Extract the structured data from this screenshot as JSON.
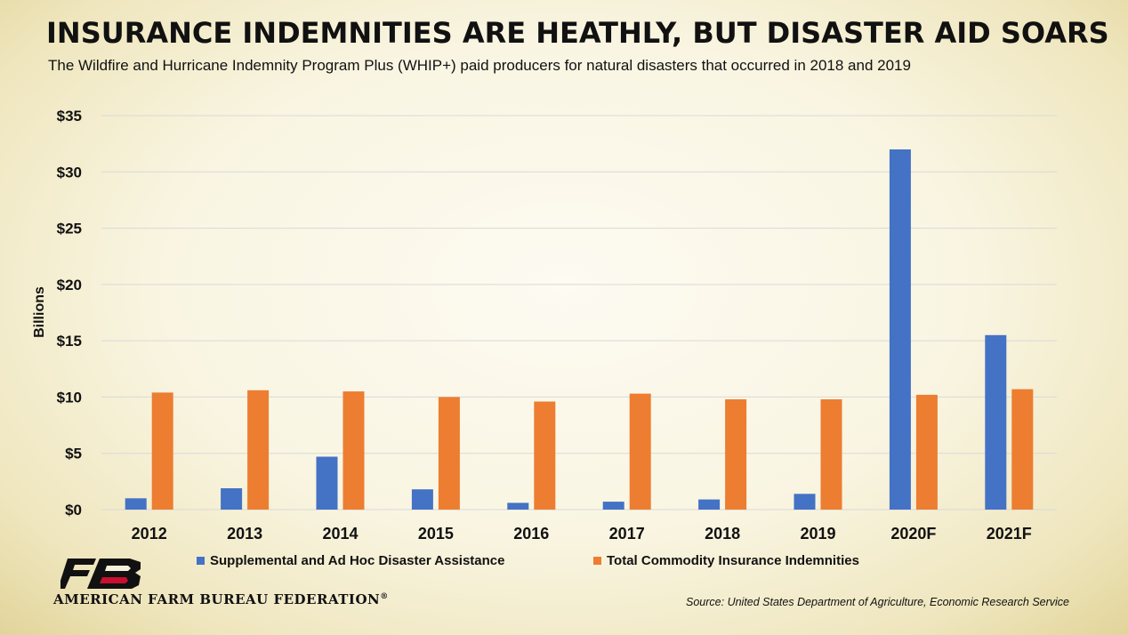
{
  "title": "INSURANCE INDEMNITIES ARE HEATHLY, BUT DISASTER AID SOARS",
  "subtitle": "The Wildfire and Hurricane Indemnity Program Plus (WHIP+) paid producers for natural disasters that occurred in 2018 and 2019",
  "source": "Source: United States Department of Agriculture, Economic Research Service",
  "logo": {
    "text": "AMERICAN FARM BUREAU FEDERATION",
    "registered": "®",
    "mark_letters": "FB"
  },
  "colors": {
    "series1": "#4472C4",
    "series2": "#ED7D31",
    "grid": "#d9d9d9"
  },
  "chart_data": {
    "type": "bar",
    "categories": [
      "2012",
      "2013",
      "2014",
      "2015",
      "2016",
      "2017",
      "2018",
      "2019",
      "2020F",
      "2021F"
    ],
    "series": [
      {
        "name": "Supplemental and Ad Hoc Disaster Assistance",
        "values": [
          1.0,
          1.9,
          4.7,
          1.8,
          0.6,
          0.7,
          0.9,
          1.4,
          32.0,
          15.5
        ]
      },
      {
        "name": "Total Commodity Insurance Indemnities",
        "values": [
          10.4,
          10.6,
          10.5,
          10.0,
          9.6,
          10.3,
          9.8,
          9.8,
          10.2,
          10.7
        ]
      }
    ],
    "ylabel": "Billions",
    "xlabel": "",
    "ylim": [
      0,
      35
    ],
    "yticks": [
      "$0",
      "$5",
      "$10",
      "$15",
      "$20",
      "$25",
      "$30",
      "$35"
    ],
    "ytick_values": [
      0,
      5,
      10,
      15,
      20,
      25,
      30,
      35
    ],
    "grid": true,
    "legend": "bottom"
  }
}
